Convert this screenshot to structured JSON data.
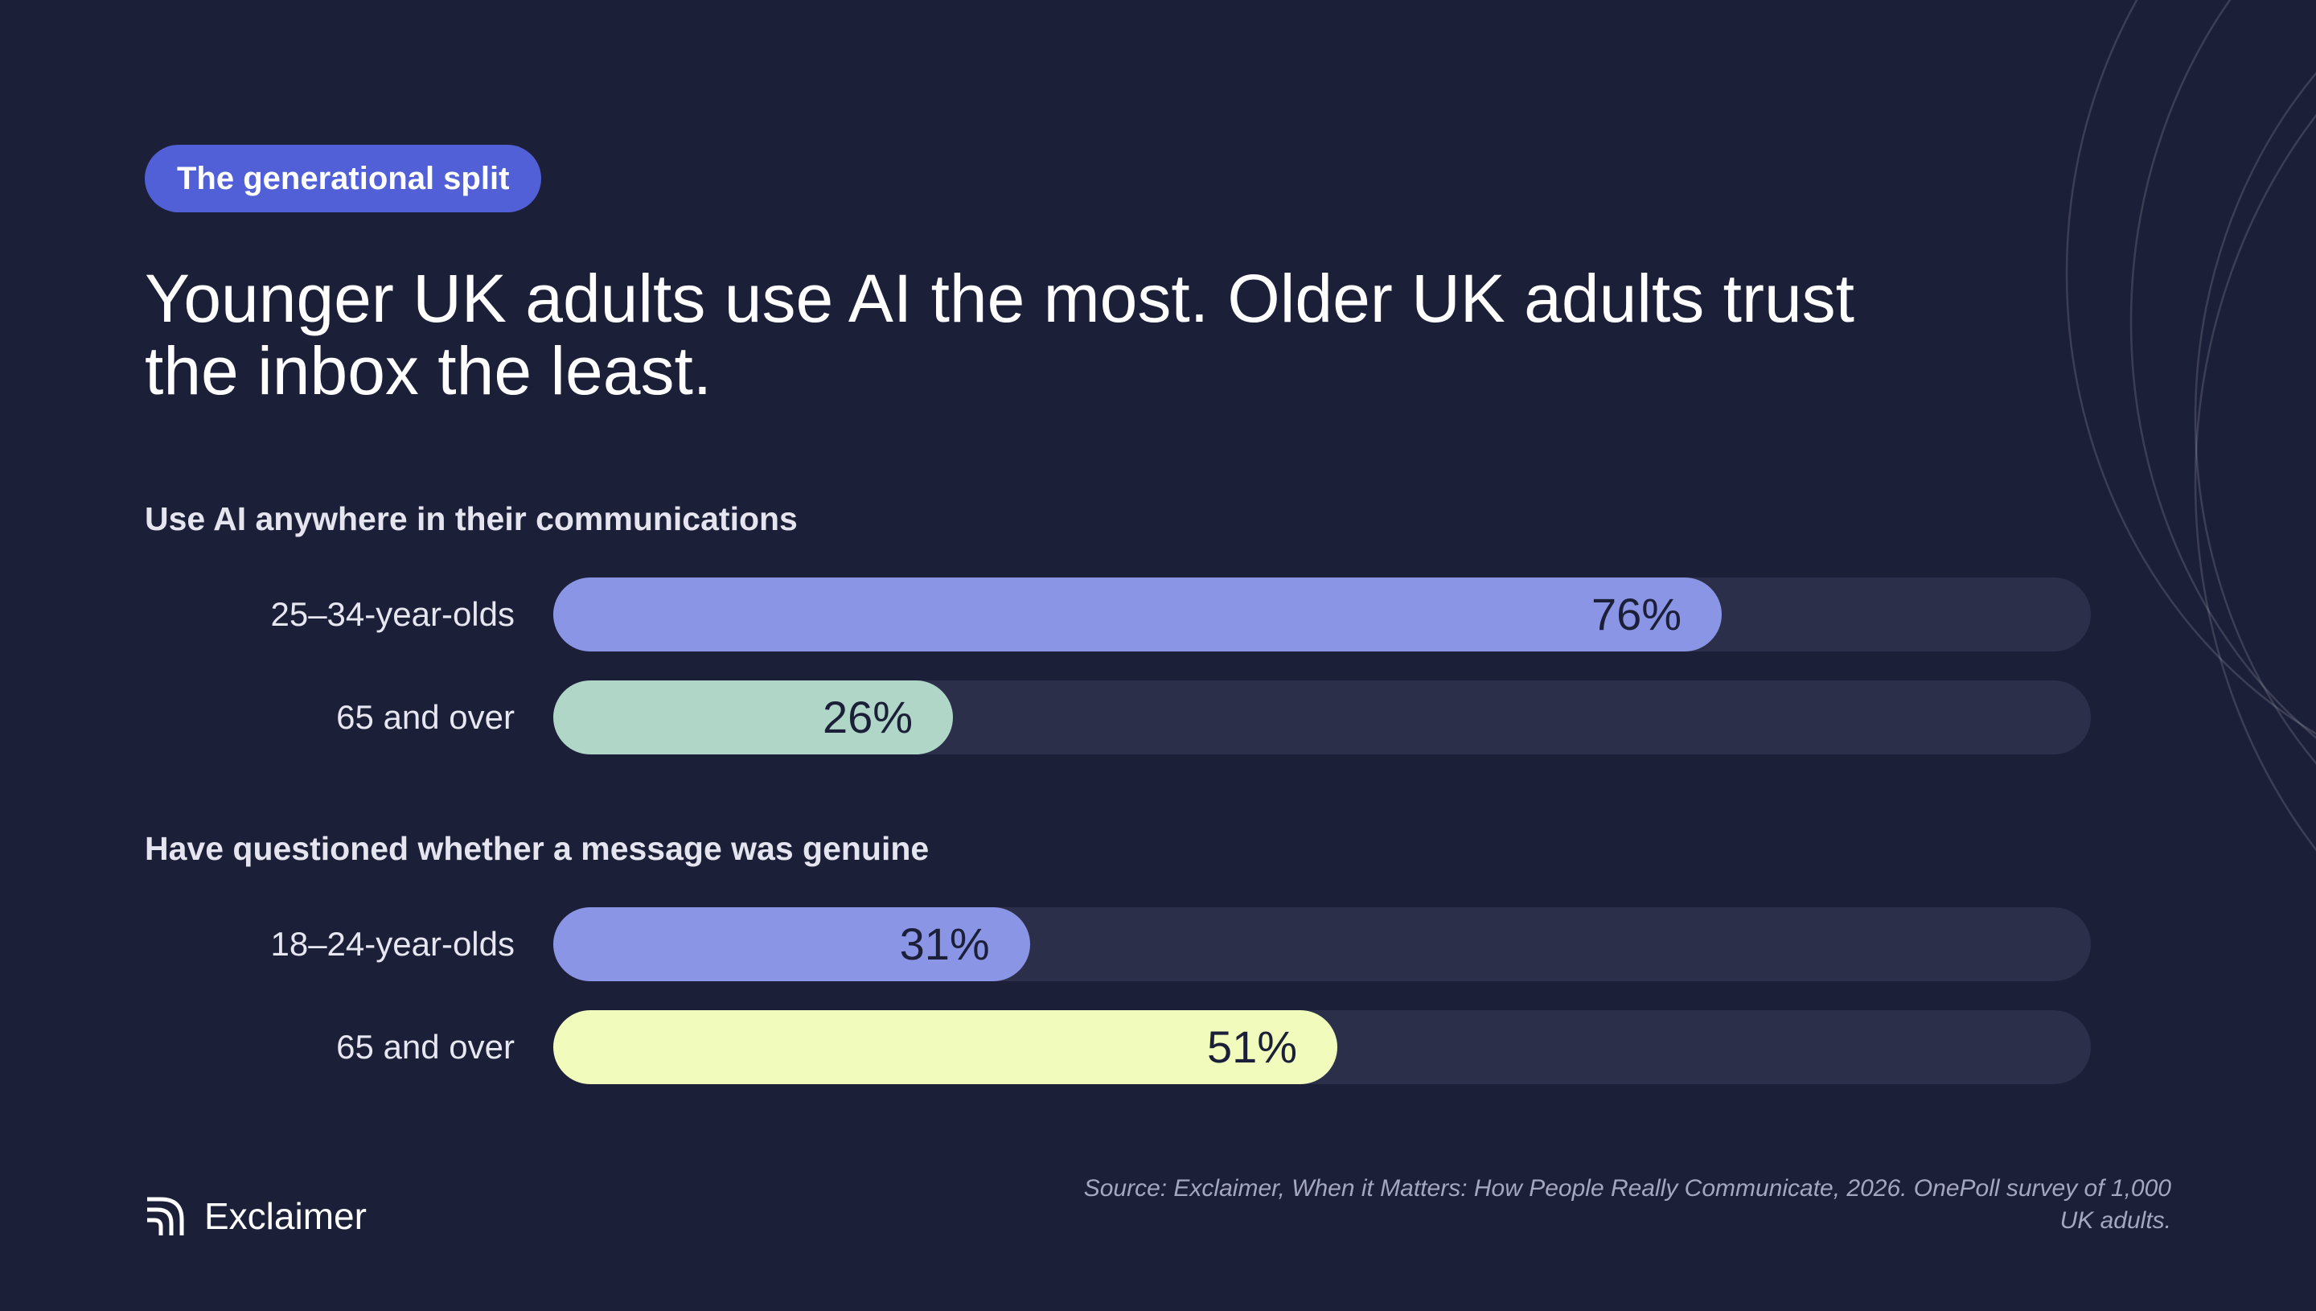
{
  "badge": "The generational split",
  "headline": "Younger UK adults use AI the most. Older UK adults trust the inbox the least.",
  "chart_data": {
    "type": "bar",
    "orientation": "horizontal",
    "unit": "%",
    "xlim": [
      0,
      100
    ],
    "groups": [
      {
        "title": "Use AI anywhere in their communications",
        "bars": [
          {
            "label": "25–34-year-olds",
            "value": 76,
            "value_label": "76%",
            "color": "#8a95e6"
          },
          {
            "label": "65 and over",
            "value": 26,
            "value_label": "26%",
            "color": "#afd6c6"
          }
        ]
      },
      {
        "title": "Have questioned whether a message was genuine",
        "bars": [
          {
            "label": "18–24-year-olds",
            "value": 31,
            "value_label": "31%",
            "color": "#8a95e6"
          },
          {
            "label": "65 and over",
            "value": 51,
            "value_label": "51%",
            "color": "#f1fcbc"
          }
        ]
      }
    ]
  },
  "footer": {
    "brand": "Exclaimer",
    "brand_icon": "exclaimer-logo-icon",
    "source": "Source: Exclaimer, When it Matters: How People Really Communicate, 2026. OnePoll survey of 1,000 UK adults."
  },
  "colors": {
    "background": "#1c1f38",
    "badge": "#5160d6",
    "track": "#2c2f4a"
  }
}
